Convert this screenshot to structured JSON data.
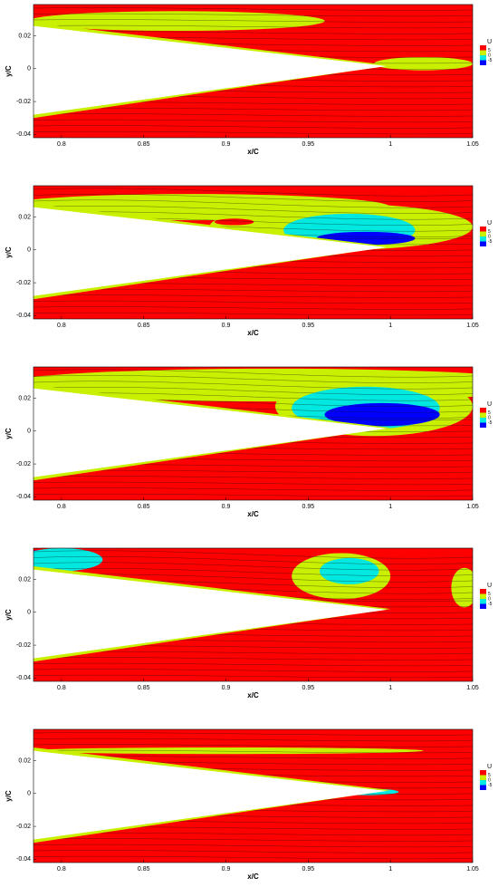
{
  "chart_data": [
    {
      "type": "contour",
      "xlabel": "x/C",
      "ylabel": "y/C",
      "xlim": [
        0.783,
        1.05
      ],
      "ylim": [
        -0.042,
        0.039
      ],
      "xticks": [
        0.8,
        0.85,
        0.9,
        0.95,
        1,
        1.05
      ],
      "yticks": [
        0.02,
        0,
        -0.02,
        -0.04
      ],
      "legend": {
        "title": "U",
        "levels": [
          5,
          0,
          -5
        ],
        "colors": [
          "#ff0000",
          "#c8f000",
          "#00e8e0",
          "#0000ff"
        ]
      }
    },
    {
      "type": "contour",
      "xlabel": "x/C",
      "ylabel": "y/C",
      "xlim": [
        0.783,
        1.05
      ],
      "ylim": [
        -0.042,
        0.039
      ],
      "xticks": [
        0.8,
        0.85,
        0.9,
        0.95,
        1,
        1.05
      ],
      "yticks": [
        0.02,
        0,
        -0.02,
        -0.04
      ],
      "legend": {
        "title": "U",
        "levels": [
          5,
          0,
          -5
        ],
        "colors": [
          "#ff0000",
          "#c8f000",
          "#00e8e0",
          "#0000ff"
        ]
      }
    },
    {
      "type": "contour",
      "xlabel": "x/C",
      "ylabel": "y/C",
      "xlim": [
        0.783,
        1.05
      ],
      "ylim": [
        -0.042,
        0.039
      ],
      "xticks": [
        0.8,
        0.85,
        0.9,
        0.95,
        1,
        1.05
      ],
      "yticks": [
        0.02,
        0,
        -0.02,
        -0.04
      ],
      "legend": {
        "title": "U",
        "levels": [
          5,
          0,
          -5
        ],
        "colors": [
          "#ff0000",
          "#c8f000",
          "#00e8e0",
          "#0000ff"
        ]
      }
    },
    {
      "type": "contour",
      "xlabel": "x/C",
      "ylabel": "y/C",
      "xlim": [
        0.783,
        1.05
      ],
      "ylim": [
        -0.042,
        0.039
      ],
      "xticks": [
        0.8,
        0.85,
        0.9,
        0.95,
        1,
        1.05
      ],
      "yticks": [
        0.02,
        0,
        -0.02,
        -0.04
      ],
      "legend": {
        "title": "U",
        "levels": [
          5,
          0,
          -5
        ],
        "colors": [
          "#ff0000",
          "#c8f000",
          "#00e8e0",
          "#0000ff"
        ]
      }
    },
    {
      "type": "contour",
      "xlabel": "x/C",
      "ylabel": "y/C",
      "xlim": [
        0.783,
        1.05
      ],
      "ylim": [
        -0.042,
        0.039
      ],
      "xticks": [
        0.8,
        0.85,
        0.9,
        0.95,
        1,
        1.05
      ],
      "yticks": [
        0.02,
        0,
        -0.02,
        -0.04
      ],
      "legend": {
        "title": "U",
        "levels": [
          5,
          0,
          -5
        ],
        "colors": [
          "#ff0000",
          "#c8f000",
          "#00e8e0",
          "#0000ff"
        ]
      }
    }
  ]
}
